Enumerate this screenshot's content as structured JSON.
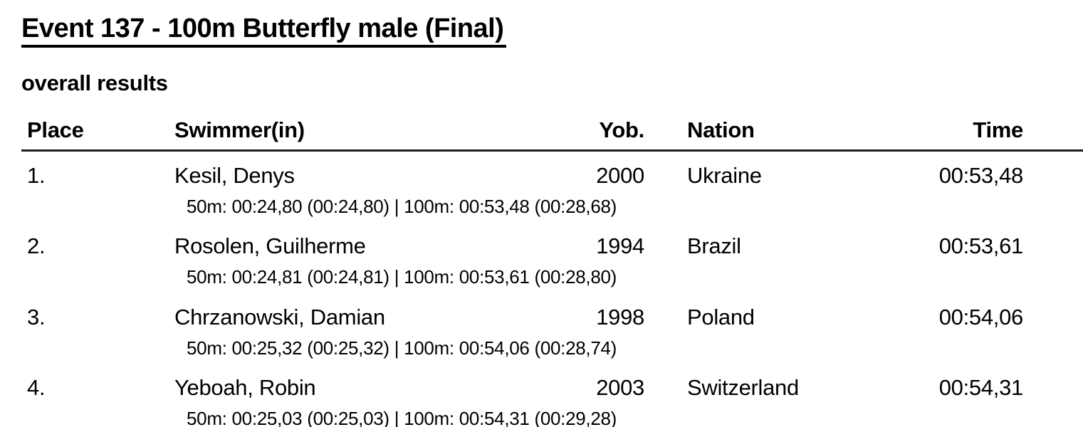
{
  "page": {
    "title": "Event 137 - 100m Butterfly male (Final)",
    "subtitle": "overall results"
  },
  "colors": {
    "text": "#000000",
    "background": "#ffffff",
    "header_rule": "#1c1c1c",
    "title_underline": "#000000"
  },
  "table": {
    "headers": {
      "place": "Place",
      "swimmer": "Swimmer(in)",
      "yob": "Yob.",
      "nation": "Nation",
      "time": "Time"
    },
    "rows": [
      {
        "place": "1.",
        "swimmer": "Kesil, Denys",
        "yob": "2000",
        "nation": "Ukraine",
        "time": "00:53,48",
        "splits": "50m: 00:24,80 (00:24,80) | 100m: 00:53,48 (00:28,68)"
      },
      {
        "place": "2.",
        "swimmer": "Rosolen, Guilherme",
        "yob": "1994",
        "nation": "Brazil",
        "time": "00:53,61",
        "splits": "50m: 00:24,81 (00:24,81) | 100m: 00:53,61 (00:28,80)"
      },
      {
        "place": "3.",
        "swimmer": "Chrzanowski, Damian",
        "yob": "1998",
        "nation": "Poland",
        "time": "00:54,06",
        "splits": "50m: 00:25,32 (00:25,32) | 100m: 00:54,06 (00:28,74)"
      },
      {
        "place": "4.",
        "swimmer": "Yeboah, Robin",
        "yob": "2003",
        "nation": "Switzerland",
        "time": "00:54,31",
        "splits": "50m: 00:25,03 (00:25,03) | 100m: 00:54,31 (00:29,28)"
      }
    ]
  }
}
